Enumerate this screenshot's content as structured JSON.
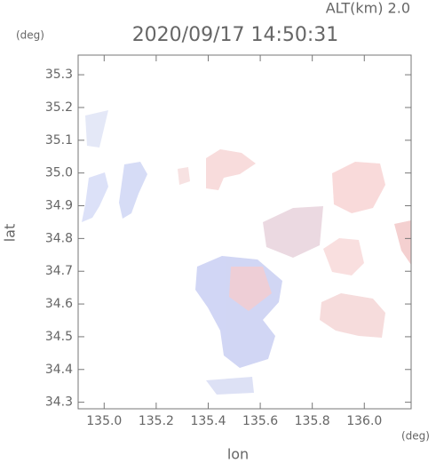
{
  "chart_data": {
    "type": "map",
    "title": "2020/09/17 14:50:31",
    "subtitle": "ALT(km) 2.0",
    "x_label": "lon",
    "x_unit": "(deg)",
    "y_label": "lat",
    "y_unit": "(deg)",
    "xlim": [
      134.9,
      136.18
    ],
    "xticks": [
      {
        "value": 135,
        "label": "135.0"
      },
      135.2,
      135.4,
      135.6,
      135.8,
      {
        "value": 136,
        "label": "136.0"
      }
    ],
    "ylim": [
      34.28,
      35.36
    ],
    "yticks": [
      34.3,
      34.4,
      34.5,
      34.6,
      34.7,
      34.8,
      34.9,
      {
        "value": 35,
        "label": "35.0"
      },
      35.1,
      35.2,
      35.3
    ]
  }
}
